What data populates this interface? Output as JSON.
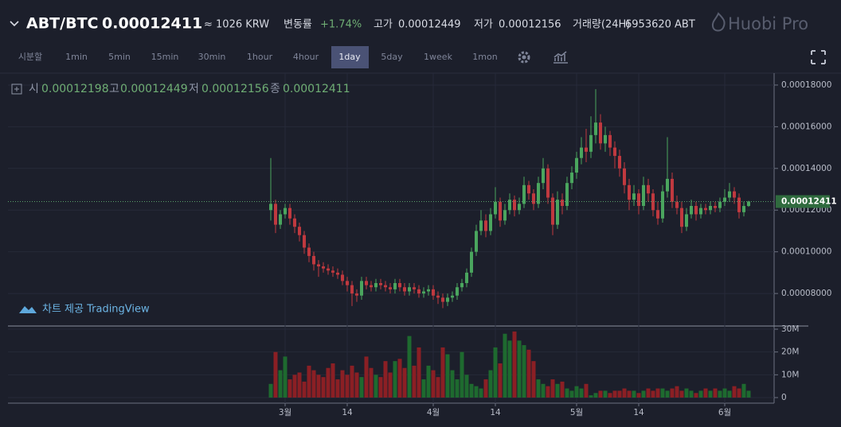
{
  "header": {
    "pair": "ABT/BTC",
    "price": "0.00012411",
    "krw": "≈ 1026 KRW",
    "change_label": "변동률",
    "change": "+1.74%",
    "high_label": "고가",
    "high": "0.00012449",
    "low_label": "저가",
    "low": "0.00012156",
    "volume_label": "거래량(24H)",
    "volume": "6953620 ABT",
    "brand": "Huobi Pro"
  },
  "toolbar": [
    "시분할",
    "1min",
    "5min",
    "15min",
    "30min",
    "1hour",
    "4hour",
    "1day",
    "5day",
    "1week",
    "1mon"
  ],
  "legend": {
    "open_label": "시",
    "open": "0.00012198",
    "high_label": "고",
    "high": "0.00012449",
    "low_label": "저",
    "low": "0.00012156",
    "close_label": "종",
    "close": "0.00012411"
  },
  "watermark": "차트 제공 TradingView",
  "chart_data": {
    "type": "candlestick",
    "open": [
      0.00012,
      0.000123,
      0.000113,
      0.000118,
      0.000121,
      0.000116,
      0.000112,
      0.000108,
      0.000102,
      9.8e-05,
      9.4e-05,
      9.3e-05,
      9.2e-05,
      9.1e-05,
      9e-05,
      8.9e-05,
      8.6e-05,
      8.4e-05,
      8e-05,
      7.9e-05,
      8.6e-05,
      8.4e-05,
      8.3e-05,
      8.5e-05,
      8.4e-05,
      8.3e-05,
      8.2e-05,
      8.5e-05,
      8.3e-05,
      8.1e-05,
      8.3e-05,
      8.2e-05,
      8e-05,
      8.1e-05,
      8.2e-05,
      7.9e-05,
      7.8e-05,
      7.6e-05,
      7.8e-05,
      7.9e-05,
      8.3e-05,
      8.5e-05,
      9e-05,
      0.0001,
      0.00011,
      0.000115,
      0.00011,
      0.000118,
      0.000124,
      0.000115,
      0.00012,
      0.000125,
      0.00012,
      0.000123,
      0.000132,
      0.000128,
      0.000123,
      0.000133,
      0.00014,
      0.000126,
      0.000113,
      0.000125,
      0.000122,
      0.000133,
      0.000138,
      0.000145,
      0.00015,
      0.000148,
      0.000156,
      0.000162,
      0.000152,
      0.000156,
      0.00015,
      0.000146,
      0.00014,
      0.000132,
      0.000125,
      0.000128,
      0.000122,
      0.000132,
      0.000128,
      0.00012,
      0.000116,
      0.000129,
      0.000135,
      0.000124,
      0.000121,
      0.000112,
      0.000118,
      0.000122,
      0.000118,
      0.000121,
      0.00012,
      0.000122,
      0.000121,
      0.000124,
      0.000126,
      0.000129,
      0.000126,
      0.000119,
      0.00012198
    ],
    "high": [
      0.000145,
      0.000125,
      0.00012,
      0.000123,
      0.000123,
      0.000118,
      0.000114,
      0.00011,
      0.000104,
      0.0001,
      9.6e-05,
      9.5e-05,
      9.4e-05,
      9.3e-05,
      9.2e-05,
      9.1e-05,
      8.8e-05,
      8.6e-05,
      8.2e-05,
      8.8e-05,
      8.8e-05,
      8.6e-05,
      8.7e-05,
      8.7e-05,
      8.6e-05,
      8.5e-05,
      8.7e-05,
      8.7e-05,
      8.5e-05,
      8.5e-05,
      8.5e-05,
      8.4e-05,
      8.3e-05,
      8.4e-05,
      8.4e-05,
      8.1e-05,
      8e-05,
      8e-05,
      8.1e-05,
      8.5e-05,
      8.7e-05,
      9.2e-05,
      0.000102,
      0.000113,
      0.00012,
      0.000118,
      0.000121,
      0.000131,
      0.000126,
      0.000123,
      0.000128,
      0.000127,
      0.000126,
      0.000136,
      0.000134,
      0.00013,
      0.000136,
      0.000145,
      0.000142,
      0.000128,
      0.000129,
      0.000128,
      0.000136,
      0.000141,
      0.000148,
      0.000155,
      0.000159,
      0.000165,
      0.000178,
      0.000166,
      0.00016,
      0.000158,
      0.000153,
      0.000149,
      0.000143,
      0.000135,
      0.000132,
      0.00013,
      0.000136,
      0.000135,
      0.00013,
      0.000124,
      0.000132,
      0.000155,
      0.000138,
      0.000127,
      0.000124,
      0.000121,
      0.000125,
      0.000124,
      0.000123,
      0.000123,
      0.000124,
      0.000124,
      0.000126,
      0.00013,
      0.000133,
      0.000131,
      0.000128,
      0.000124,
      0.00012449
    ],
    "low": [
      0.000115,
      0.000109,
      0.000111,
      0.000116,
      0.000113,
      0.000109,
      0.000105,
      9.9e-05,
      9.5e-05,
      9.1e-05,
      8.8e-05,
      9e-05,
      8.9e-05,
      8.8e-05,
      8.7e-05,
      8.4e-05,
      8.1e-05,
      7.4e-05,
      7.6e-05,
      7.7e-05,
      8.2e-05,
      8.1e-05,
      8.1e-05,
      8.2e-05,
      8.1e-05,
      8e-05,
      8e-05,
      8.1e-05,
      7.9e-05,
      7.9e-05,
      8e-05,
      7.8e-05,
      7.8e-05,
      7.9e-05,
      7.7e-05,
      7.5e-05,
      7.3e-05,
      7.4e-05,
      7.6e-05,
      7.7e-05,
      8.1e-05,
      8.3e-05,
      8.8e-05,
      9.8e-05,
      0.000108,
      0.000107,
      0.000108,
      0.000116,
      0.000112,
      0.000113,
      0.000118,
      0.000117,
      0.000118,
      0.000121,
      0.000125,
      0.00012,
      0.000121,
      0.00013,
      0.000123,
      0.000108,
      0.000111,
      0.000118,
      0.00012,
      0.00013,
      0.000135,
      0.000142,
      0.000143,
      0.000145,
      0.000152,
      0.000149,
      0.000148,
      0.000146,
      0.00014,
      0.000136,
      0.000128,
      0.00012,
      0.000122,
      0.000118,
      0.00012,
      0.000124,
      0.000117,
      0.000113,
      0.000114,
      0.000126,
      0.000121,
      0.000118,
      0.000109,
      0.00011,
      0.000116,
      0.000115,
      0.000116,
      0.000118,
      0.000118,
      0.000119,
      0.000119,
      0.000122,
      0.000124,
      0.000123,
      0.000116,
      0.000117,
      0.00012156
    ],
    "close": [
      0.000123,
      0.000113,
      0.000118,
      0.000121,
      0.000116,
      0.000112,
      0.000108,
      0.000102,
      9.8e-05,
      9.4e-05,
      9.3e-05,
      9.2e-05,
      9.1e-05,
      9e-05,
      8.9e-05,
      8.6e-05,
      8.4e-05,
      8e-05,
      7.9e-05,
      8.6e-05,
      8.4e-05,
      8.3e-05,
      8.5e-05,
      8.4e-05,
      8.3e-05,
      8.2e-05,
      8.5e-05,
      8.3e-05,
      8.1e-05,
      8.3e-05,
      8.2e-05,
      8e-05,
      8.1e-05,
      8.2e-05,
      7.9e-05,
      7.8e-05,
      7.6e-05,
      7.8e-05,
      7.9e-05,
      8.3e-05,
      8.5e-05,
      9e-05,
      0.0001,
      0.00011,
      0.000115,
      0.00011,
      0.000118,
      0.000124,
      0.000115,
      0.00012,
      0.000125,
      0.00012,
      0.000123,
      0.000132,
      0.000128,
      0.000123,
      0.000133,
      0.00014,
      0.000126,
      0.000113,
      0.000125,
      0.000122,
      0.000133,
      0.000138,
      0.000145,
      0.00015,
      0.000148,
      0.000156,
      0.000162,
      0.000152,
      0.000156,
      0.00015,
      0.000146,
      0.00014,
      0.000132,
      0.000125,
      0.000128,
      0.000122,
      0.000132,
      0.000128,
      0.00012,
      0.000116,
      0.000129,
      0.000135,
      0.000124,
      0.000121,
      0.000112,
      0.000118,
      0.000122,
      0.000118,
      0.000121,
      0.00012,
      0.000122,
      0.000121,
      0.000124,
      0.000126,
      0.000129,
      0.000126,
      0.000119,
      0.00012198,
      0.00012411
    ],
    "ylim": [
      6.44e-05,
      0.0001857
    ],
    "yticks": [
      {
        "value": 8e-05,
        "label": "0.00008000"
      },
      {
        "value": 0.0001,
        "label": "0.00010000"
      },
      {
        "value": 0.00012,
        "label": "0.00012000"
      },
      {
        "value": 0.00014,
        "label": "0.00014000"
      },
      {
        "value": 0.00016,
        "label": "0.00016000"
      },
      {
        "value": 0.00018,
        "label": "0.00018000"
      }
    ],
    "last_price": 0.00012411,
    "xticks": [
      {
        "value": 3,
        "label": "3월"
      },
      {
        "value": 16,
        "label": "14"
      },
      {
        "value": 34,
        "label": "4월"
      },
      {
        "value": 47,
        "label": "14"
      },
      {
        "value": 64,
        "label": "5월"
      },
      {
        "value": 77,
        "label": "14"
      },
      {
        "value": 95,
        "label": "6월"
      }
    ],
    "colors": {
      "up": "#4aa55e",
      "down": "#c0393f",
      "volume_up": "#1e6a2f",
      "volume_down": "#8b1f24"
    },
    "grid": true,
    "volume": {
      "values": [
        6000000,
        20000000,
        12000000,
        18000000,
        8000000,
        10000000,
        11000000,
        7000000,
        14000000,
        12000000,
        10000000,
        9000000,
        13000000,
        15000000,
        8000000,
        12000000,
        10000000,
        14000000,
        11000000,
        9000000,
        18000000,
        13000000,
        10000000,
        9000000,
        16000000,
        11000000,
        16000000,
        17000000,
        13000000,
        27000000,
        14000000,
        22000000,
        8000000,
        14000000,
        12000000,
        9000000,
        22000000,
        19000000,
        12000000,
        8000000,
        20000000,
        10000000,
        6000000,
        5000000,
        4000000,
        8000000,
        12000000,
        22000000,
        15000000,
        28000000,
        25000000,
        29000000,
        25000000,
        23000000,
        21000000,
        16000000,
        8000000,
        6000000,
        5000000,
        8000000,
        6000000,
        7000000,
        4000000,
        3000000,
        5000000,
        4000000,
        6000000,
        1000000,
        2000000,
        3000000,
        3000000,
        2000000,
        3000000,
        3000000,
        4000000,
        3000000,
        3000000,
        2000000,
        3000000,
        4000000,
        3000000,
        4000000,
        4000000,
        3000000,
        4000000,
        5000000,
        3000000,
        4000000,
        3000000,
        2000000,
        3000000,
        4000000,
        3000000,
        4000000,
        3000000,
        4000000,
        3000000,
        5000000,
        4000000,
        6000000,
        3000000
      ],
      "ylim": [
        0,
        30000000
      ],
      "yticks": [
        0,
        {
          "value": 10000000,
          "label": "10M"
        },
        {
          "value": 20000000,
          "label": "20M"
        },
        {
          "value": 30000000,
          "label": "30M"
        }
      ]
    }
  }
}
